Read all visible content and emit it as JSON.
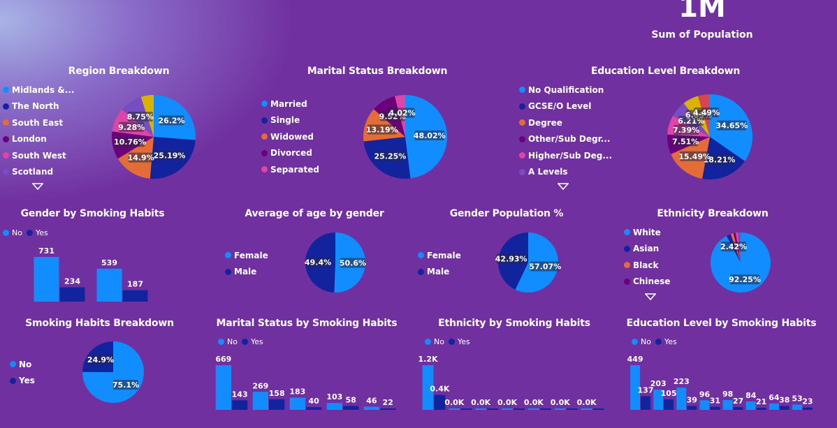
{
  "colors": {
    "c1": "#118dff",
    "c2": "#12239e",
    "c3": "#e66c37",
    "c4": "#6b007b",
    "c5": "#e044a7",
    "c6": "#744ec2",
    "c7": "#d9b300",
    "c8": "#d64550"
  },
  "kpi": {
    "value": "1M",
    "label": "Sum of Population"
  },
  "chart_data": [
    {
      "id": "region",
      "type": "pie",
      "title": "Region Breakdown",
      "legend": [
        "Midlands &...",
        "The North",
        "South East",
        "London",
        "South West",
        "Scotland"
      ],
      "slices": [
        {
          "v": 26.2,
          "c": "c1",
          "label": "26.2%"
        },
        {
          "v": 25.19,
          "c": "c2",
          "label": "25.19%"
        },
        {
          "v": 14.9,
          "c": "c3",
          "label": "14.9%"
        },
        {
          "v": 10.76,
          "c": "c4",
          "label": "10.76%"
        },
        {
          "v": 9.28,
          "c": "c5",
          "label": "9.28%"
        },
        {
          "v": 8.75,
          "c": "c6",
          "label": "8.75%"
        },
        {
          "v": 4.92,
          "c": "c7",
          "label": ""
        }
      ]
    },
    {
      "id": "marital",
      "type": "pie",
      "title": "Marital Status Breakdown",
      "legend": [
        "Married",
        "Single",
        "Widowed",
        "Divorced",
        "Separated"
      ],
      "slices": [
        {
          "v": 48.02,
          "c": "c1",
          "label": "48.02%"
        },
        {
          "v": 25.25,
          "c": "c2",
          "label": "25.25%"
        },
        {
          "v": 13.19,
          "c": "c3",
          "label": "13.19%"
        },
        {
          "v": 9.52,
          "c": "c4",
          "label": "9.52%"
        },
        {
          "v": 4.02,
          "c": "c5",
          "label": "4.02%"
        }
      ]
    },
    {
      "id": "education",
      "type": "pie",
      "title": "Education Level Breakdown",
      "legend": [
        "No Qualification",
        "GCSE/O Level",
        "Degree",
        "Other/Sub Degr...",
        "Higher/Sub Deg...",
        "A Levels"
      ],
      "slices": [
        {
          "v": 34.65,
          "c": "c1",
          "label": "34.65%"
        },
        {
          "v": 18.21,
          "c": "c2",
          "label": "18.21%"
        },
        {
          "v": 15.49,
          "c": "c3",
          "label": "15.49%"
        },
        {
          "v": 7.51,
          "c": "c4",
          "label": "7.51%"
        },
        {
          "v": 7.39,
          "c": "c5",
          "label": "7.39%"
        },
        {
          "v": 6.21,
          "c": "c6",
          "label": "6.21%"
        },
        {
          "v": 6.03,
          "c": "c7",
          "label": "6.03%"
        },
        {
          "v": 4.49,
          "c": "c8",
          "label": "4.49%"
        }
      ]
    },
    {
      "id": "ageGender",
      "type": "pie",
      "title": "Average of age by gender",
      "legend": [
        "Female",
        "Male"
      ],
      "slices": [
        {
          "v": 50.6,
          "c": "c1",
          "label": "50.6%"
        },
        {
          "v": 49.4,
          "c": "c2",
          "label": "49.4%"
        }
      ]
    },
    {
      "id": "genderPop",
      "type": "pie",
      "title": "Gender Population %",
      "legend": [
        "Female",
        "Male"
      ],
      "slices": [
        {
          "v": 57.07,
          "c": "c1",
          "label": "57.07%"
        },
        {
          "v": 42.93,
          "c": "c2",
          "label": "42.93%"
        }
      ]
    },
    {
      "id": "ethnicity",
      "type": "pie",
      "title": "Ethnicity Breakdown",
      "legend": [
        "White",
        "Asian",
        "Black",
        "Chinese"
      ],
      "slices": [
        {
          "v": 92.25,
          "c": "c1",
          "label": "92.25%"
        },
        {
          "v": 2.42,
          "c": "c2",
          "label": "2.42%"
        },
        {
          "v": 1.5,
          "c": "c3",
          "label": ""
        },
        {
          "v": 1.2,
          "c": "c4",
          "label": ""
        },
        {
          "v": 1.3,
          "c": "c5",
          "label": ""
        },
        {
          "v": 1.33,
          "c": "c6",
          "label": ""
        }
      ]
    },
    {
      "id": "smoking",
      "type": "pie",
      "title": "Smoking Habits Breakdown",
      "legend": [
        "No",
        "Yes"
      ],
      "slices": [
        {
          "v": 75.1,
          "c": "c1",
          "label": "75.1%"
        },
        {
          "v": 24.9,
          "c": "c2",
          "label": "24.9%"
        }
      ]
    },
    {
      "id": "genderSmoke",
      "type": "bar",
      "title": "Gender by Smoking Habits",
      "legend": [
        "No",
        "Yes"
      ],
      "groups": [
        {
          "no": 731,
          "yes": 234,
          "noLabel": "731",
          "yesLabel": "234"
        },
        {
          "no": 539,
          "yes": 187,
          "noLabel": "539",
          "yesLabel": "187"
        }
      ]
    },
    {
      "id": "maritalSmoke",
      "type": "bar",
      "title": "Marital Status by Smoking Habits",
      "legend": [
        "No",
        "Yes"
      ],
      "groups": [
        {
          "no": 669,
          "yes": 143,
          "noLabel": "669",
          "yesLabel": "143"
        },
        {
          "no": 269,
          "yes": 158,
          "noLabel": "269",
          "yesLabel": "158"
        },
        {
          "no": 183,
          "yes": 40,
          "noLabel": "183",
          "yesLabel": "40"
        },
        {
          "no": 103,
          "yes": 58,
          "noLabel": "103",
          "yesLabel": "58"
        },
        {
          "no": 46,
          "yes": 22,
          "noLabel": "46",
          "yesLabel": "22"
        }
      ]
    },
    {
      "id": "ethnicSmoke",
      "type": "bar",
      "title": "Ethnicity by Smoking Habits",
      "legend": [
        "No",
        "Yes"
      ],
      "groups": [
        {
          "no": 1200,
          "yes": 400,
          "noLabel": "1.2K",
          "yesLabel": "0.4K"
        },
        {
          "no": 12,
          "yes": 6,
          "noLabel": "0.0K",
          "yesLabel": ""
        },
        {
          "no": 10,
          "yes": 5,
          "noLabel": "0.0K",
          "yesLabel": ""
        },
        {
          "no": 9,
          "yes": 5,
          "noLabel": "0.0K",
          "yesLabel": ""
        },
        {
          "no": 8,
          "yes": 4,
          "noLabel": "0.0K",
          "yesLabel": ""
        },
        {
          "no": 7,
          "yes": 4,
          "noLabel": "0.0K",
          "yesLabel": ""
        },
        {
          "no": 6,
          "yes": 3,
          "noLabel": "0.0K",
          "yesLabel": ""
        }
      ]
    },
    {
      "id": "eduSmoke",
      "type": "bar",
      "title": "Education Level by Smoking Habits",
      "legend": [
        "No",
        "Yes"
      ],
      "groups": [
        {
          "no": 449,
          "yes": 137,
          "noLabel": "449",
          "yesLabel": "137"
        },
        {
          "no": 203,
          "yes": 105,
          "noLabel": "203",
          "yesLabel": "105"
        },
        {
          "no": 223,
          "yes": 39,
          "noLabel": "223",
          "yesLabel": "39"
        },
        {
          "no": 96,
          "yes": 31,
          "noLabel": "96",
          "yesLabel": "31"
        },
        {
          "no": 98,
          "yes": 27,
          "noLabel": "98",
          "yesLabel": "27"
        },
        {
          "no": 84,
          "yes": 21,
          "noLabel": "84",
          "yesLabel": "21"
        },
        {
          "no": 64,
          "yes": 38,
          "noLabel": "64",
          "yesLabel": "38"
        },
        {
          "no": 53,
          "yes": 23,
          "noLabel": "53",
          "yesLabel": "23"
        }
      ]
    }
  ]
}
